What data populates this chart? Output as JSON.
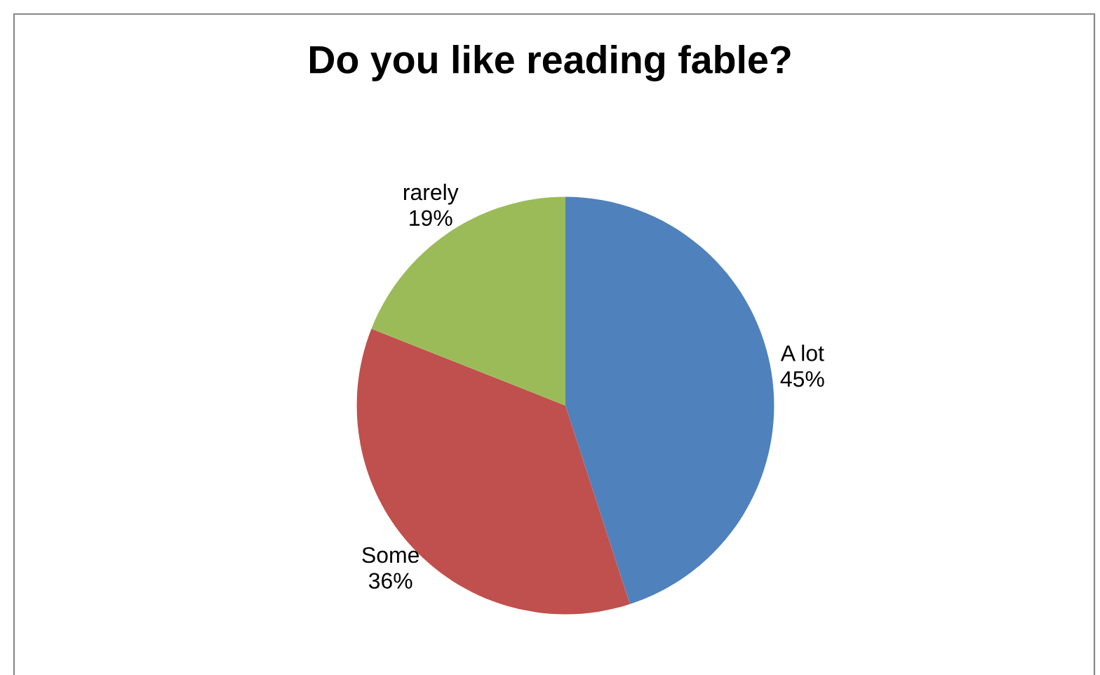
{
  "chart_data": {
    "type": "pie",
    "title": "Do you like reading fable?",
    "categories": [
      "A lot",
      "Some",
      "rarely"
    ],
    "values": [
      45,
      36,
      19
    ],
    "colors": [
      "#4f81bd",
      "#c0504d",
      "#9bbb59"
    ],
    "value_labels": [
      "45%",
      "36%",
      "19%"
    ],
    "legend": false
  }
}
